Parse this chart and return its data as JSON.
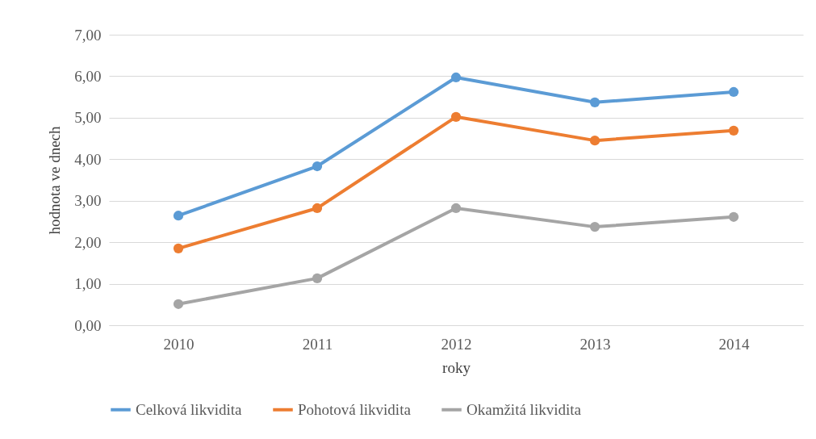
{
  "chart_data": {
    "type": "line",
    "xlabel": "roky",
    "ylabel": "hodnota ve dnech",
    "categories": [
      "2010",
      "2011",
      "2012",
      "2013",
      "2014"
    ],
    "series": [
      {
        "name": "Celková likvidita",
        "color": "#5b9bd5",
        "values": [
          2.64,
          3.83,
          5.97,
          5.37,
          5.62
        ]
      },
      {
        "name": "Pohotová likvidita",
        "color": "#ed7d31",
        "values": [
          1.85,
          2.82,
          5.02,
          4.45,
          4.69
        ]
      },
      {
        "name": "Okamžitá likvidita",
        "color": "#a5a5a5",
        "values": [
          0.51,
          1.13,
          2.82,
          2.37,
          2.61
        ]
      }
    ],
    "ylim": [
      0,
      7
    ],
    "yticks": [
      {
        "value": 0,
        "label": "0,00"
      },
      {
        "value": 1,
        "label": "1,00"
      },
      {
        "value": 2,
        "label": "2,00"
      },
      {
        "value": 3,
        "label": "3,00"
      },
      {
        "value": 4,
        "label": "4,00"
      },
      {
        "value": 5,
        "label": "5,00"
      },
      {
        "value": 6,
        "label": "6,00"
      },
      {
        "value": 7,
        "label": "7,00"
      }
    ],
    "grid": "y",
    "legend": "bottom",
    "marker": "circle",
    "line_style": "solid"
  }
}
